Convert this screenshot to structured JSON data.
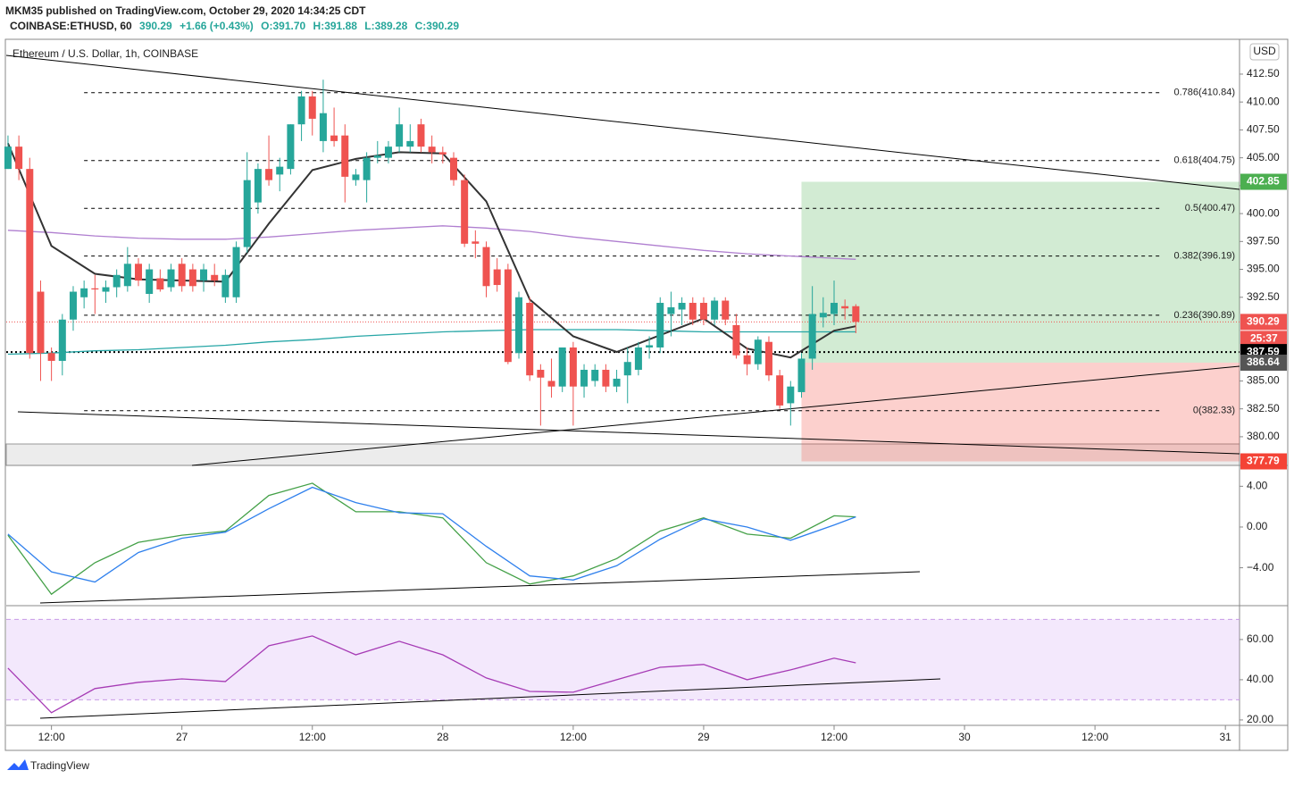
{
  "header": {
    "publisher": "MKM35 published on TradingView.com, October 29, 2020 14:34:25 CDT",
    "symbol": "COINBASE:ETHUSD, 60",
    "price": "390.29",
    "change": "+1.66 (+0.43%)",
    "open": "O:391.70",
    "high": "H:391.88",
    "low": "L:389.28",
    "close": "C:390.29",
    "legend": "Ethereum / U.S. Dollar, 1h, COINBASE",
    "currency": "USD",
    "countdown": "25:37",
    "brand": "TradingView"
  },
  "chart_data": [
    {
      "type": "candlestick",
      "xlim": [
        -0.16,
        113.3
      ],
      "ylim": [
        377.43,
        415.54
      ],
      "xticks": [
        {
          "value": 4,
          "label": "12:00"
        },
        {
          "value": 16,
          "label": "27"
        },
        {
          "value": 28,
          "label": "12:00"
        },
        {
          "value": 40,
          "label": "28"
        },
        {
          "value": 52,
          "label": "12:00"
        },
        {
          "value": 64,
          "label": "29"
        },
        {
          "value": 76,
          "label": "12:00"
        },
        {
          "value": 88,
          "label": "30"
        },
        {
          "value": 100,
          "label": "12:00"
        },
        {
          "value": 112,
          "label": "31"
        }
      ],
      "yticks": [
        {
          "value": 380,
          "label": "380.00"
        },
        {
          "value": 382.5,
          "label": "382.50"
        },
        {
          "value": 385,
          "label": "385.00"
        },
        {
          "value": 392.5,
          "label": "392.50"
        },
        {
          "value": 395,
          "label": "395.00"
        },
        {
          "value": 397.5,
          "label": "397.50"
        },
        {
          "value": 400,
          "label": "400.00"
        },
        {
          "value": 402.5,
          "label": "402.50"
        },
        {
          "value": 405,
          "label": "405.00"
        },
        {
          "value": 407.5,
          "label": "407.50"
        },
        {
          "value": 410,
          "label": "410.00"
        },
        {
          "value": 412.5,
          "label": "412.50"
        }
      ],
      "up_color": "#26a69a",
      "down_color": "#ef5350",
      "candles": [
        [
          404,
          407,
          404,
          406
        ],
        [
          406,
          407,
          403,
          404
        ],
        [
          404,
          405,
          387,
          387.5
        ],
        [
          393,
          394,
          385,
          387.5
        ],
        [
          387.5,
          388,
          385,
          386.8
        ],
        [
          386.8,
          391,
          385.5,
          390.5
        ],
        [
          390.5,
          393.5,
          389.5,
          393
        ],
        [
          392.5,
          394,
          391.5,
          393.3
        ],
        [
          393.3,
          394.5,
          391,
          393.2
        ],
        [
          393,
          394,
          392,
          393.4
        ],
        [
          393.4,
          395,
          392.5,
          394.5
        ],
        [
          393.5,
          397,
          393,
          395.5
        ],
        [
          395.5,
          396,
          393.5,
          394
        ],
        [
          392.8,
          395.5,
          392,
          395
        ],
        [
          394.2,
          395,
          393,
          393.2
        ],
        [
          393.4,
          395.5,
          393,
          395
        ],
        [
          395.5,
          396,
          393,
          393.5
        ],
        [
          395,
          395.5,
          393,
          393.5
        ],
        [
          394,
          395.5,
          393,
          395
        ],
        [
          394.5,
          395.5,
          393.5,
          394
        ],
        [
          392.5,
          395,
          392,
          394.5
        ],
        [
          392.5,
          397.5,
          392,
          397
        ],
        [
          397,
          405.5,
          396.5,
          403
        ],
        [
          401,
          404.5,
          400,
          404
        ],
        [
          404,
          407,
          402.5,
          403
        ],
        [
          403.5,
          405,
          402,
          404.2
        ],
        [
          404,
          408,
          403.5,
          408
        ],
        [
          408,
          411,
          406.5,
          410.5
        ],
        [
          410.5,
          411,
          407,
          408.5
        ],
        [
          406.5,
          412,
          405.5,
          409
        ],
        [
          407,
          409.5,
          406,
          406.5
        ],
        [
          407,
          408,
          401,
          403.3
        ],
        [
          403,
          404,
          402.5,
          403.5
        ],
        [
          403,
          405.5,
          401,
          405
        ],
        [
          405,
          406.5,
          404.5,
          405.2
        ],
        [
          405,
          406.5,
          404.5,
          406
        ],
        [
          406,
          409.5,
          405.5,
          408
        ],
        [
          406,
          408,
          405.5,
          406.5
        ],
        [
          408,
          408.5,
          405.5,
          406
        ],
        [
          406,
          407,
          404.5,
          405.5
        ],
        [
          405.5,
          406,
          404.5,
          405.3
        ],
        [
          405,
          405.5,
          402.5,
          403
        ],
        [
          403,
          403.5,
          397,
          397.3
        ],
        [
          397.5,
          398.5,
          396,
          397.3
        ],
        [
          397,
          397.5,
          392.5,
          393.5
        ],
        [
          395,
          396,
          393,
          393.6
        ],
        [
          395,
          395.5,
          386.5,
          386.7
        ],
        [
          387.5,
          393,
          387,
          392.5
        ],
        [
          392,
          392.5,
          385,
          385.5
        ],
        [
          386,
          386.5,
          381,
          385.3
        ],
        [
          385,
          387,
          383.5,
          384.5
        ],
        [
          384.5,
          388,
          384,
          388
        ],
        [
          388,
          388.5,
          381,
          384.5
        ],
        [
          384.5,
          386.5,
          383.5,
          386
        ],
        [
          385,
          386.5,
          384.5,
          386
        ],
        [
          386,
          386.5,
          384,
          384.5
        ],
        [
          384.5,
          386,
          384,
          385.2
        ],
        [
          385.5,
          388,
          383,
          386.7
        ],
        [
          386,
          388.5,
          385.5,
          388
        ],
        [
          388,
          389,
          387,
          388.2
        ],
        [
          388,
          392.5,
          387.5,
          392
        ],
        [
          391,
          393,
          389,
          391.6
        ],
        [
          391.4,
          392.5,
          390,
          392
        ],
        [
          392,
          392.5,
          390,
          390.5
        ],
        [
          392,
          392.5,
          390,
          390.5
        ],
        [
          390.5,
          392.5,
          390,
          392.2
        ],
        [
          392.2,
          392.5,
          390,
          390.5
        ],
        [
          390,
          391,
          387,
          387.3
        ],
        [
          387.3,
          388,
          385.5,
          386.5
        ],
        [
          386.5,
          389,
          386,
          388.7
        ],
        [
          388.5,
          389,
          385,
          385.5
        ],
        [
          385.5,
          386,
          382.5,
          382.8
        ],
        [
          383,
          385,
          381,
          384.5
        ],
        [
          384,
          387.5,
          383.5,
          387
        ],
        [
          387,
          393.5,
          386,
          391
        ],
        [
          390.7,
          392.5,
          389.8,
          391.1
        ],
        [
          391,
          394,
          390,
          392
        ],
        [
          391.7,
          392.3,
          390.5,
          391.5
        ],
        [
          391.7,
          391.88,
          389.28,
          390.29
        ]
      ],
      "x": [
        0,
        4,
        8,
        12,
        16,
        20,
        24,
        28,
        32,
        36,
        40,
        44,
        48,
        52,
        56,
        60,
        64,
        68,
        72,
        76,
        78
      ],
      "series": [
        {
          "color": "#b07fd0",
          "values": [
            398.5,
            398.3,
            398.0,
            397.8,
            397.7,
            397.7,
            397.9,
            398.2,
            398.5,
            398.7,
            398.9,
            398.7,
            398.4,
            397.9,
            397.5,
            397.1,
            396.7,
            396.4,
            396.2,
            396.0,
            395.9
          ]
        },
        {
          "color": "#26a6a6",
          "values": [
            387.4,
            387.5,
            387.7,
            387.8,
            388.0,
            388.2,
            388.5,
            388.7,
            389.0,
            389.2,
            389.4,
            389.5,
            389.6,
            389.6,
            389.6,
            389.5,
            389.4,
            389.4,
            389.4,
            389.4,
            389.4
          ]
        },
        {
          "color": "#333333",
          "values": [
            406.3,
            397.1,
            394.6,
            394.1,
            394.0,
            393.9,
            399.1,
            403.9,
            404.9,
            405.5,
            405.4,
            401.1,
            392.3,
            389.0,
            387.6,
            389.1,
            390.6,
            387.9,
            387.1,
            389.5,
            389.9
          ]
        }
      ],
      "fib_start": 7,
      "fib_levels": [
        {
          "value": 410.84,
          "label": "0.786(410.84)"
        },
        {
          "value": 404.75,
          "label": "0.618(404.75)"
        },
        {
          "value": 400.47,
          "label": "0.5(400.47)"
        },
        {
          "value": 396.19,
          "label": "0.382(396.19)"
        },
        {
          "value": 390.89,
          "label": "0.236(390.89)"
        },
        {
          "value": 382.33,
          "label": "0(382.33)"
        }
      ],
      "position": {
        "start": 73,
        "target": 402.85,
        "entry": 386.64,
        "stop": 377.79
      },
      "last_price": 390.29,
      "dotted_level": 387.59
    },
    {
      "type": "line",
      "ylim": [
        -7.72,
        5.96
      ],
      "yticks": [
        {
          "value": 4,
          "label": "4.00"
        },
        {
          "value": 0,
          "label": "0.00"
        },
        {
          "value": -4,
          "label": "−4.00"
        }
      ],
      "x": [
        0,
        4,
        8,
        12,
        16,
        20,
        24,
        28,
        32,
        36,
        40,
        44,
        48,
        52,
        56,
        60,
        64,
        68,
        72,
        76,
        78
      ],
      "series": [
        {
          "color": "#43a047",
          "values": [
            -0.8,
            -6.6,
            -3.5,
            -1.5,
            -0.8,
            -0.4,
            3.1,
            4.3,
            1.5,
            1.5,
            0.9,
            -3.5,
            -5.6,
            -4.8,
            -3.1,
            -0.4,
            0.9,
            -0.7,
            -1.1,
            1.1,
            1.0
          ]
        },
        {
          "color": "#2f80ed",
          "values": [
            -0.7,
            -4.4,
            -5.4,
            -2.5,
            -1.1,
            -0.5,
            1.8,
            3.9,
            2.4,
            1.4,
            1.3,
            -1.9,
            -4.8,
            -5.2,
            -3.8,
            -1.2,
            0.8,
            0.0,
            -1.3,
            0.2,
            1.0
          ]
        }
      ]
    },
    {
      "type": "line",
      "ylim": [
        17.3,
        76.4
      ],
      "yticks": [
        {
          "value": 60,
          "label": "60.00"
        },
        {
          "value": 40,
          "label": "40.00"
        },
        {
          "value": 20,
          "label": "20.00"
        }
      ],
      "band": [
        30,
        70
      ],
      "x": [
        0,
        4,
        8,
        12,
        16,
        20,
        24,
        28,
        32,
        36,
        40,
        44,
        48,
        52,
        56,
        60,
        64,
        68,
        72,
        76,
        78
      ],
      "series": [
        {
          "color": "#a63bb5",
          "values": [
            45.8,
            23.6,
            35.6,
            38.7,
            40.4,
            39.1,
            56.9,
            61.8,
            52.4,
            59.1,
            52.4,
            40.9,
            34.2,
            33.8,
            40,
            46.2,
            47.6,
            40,
            44.9,
            50.7,
            48.4
          ]
        }
      ]
    }
  ]
}
